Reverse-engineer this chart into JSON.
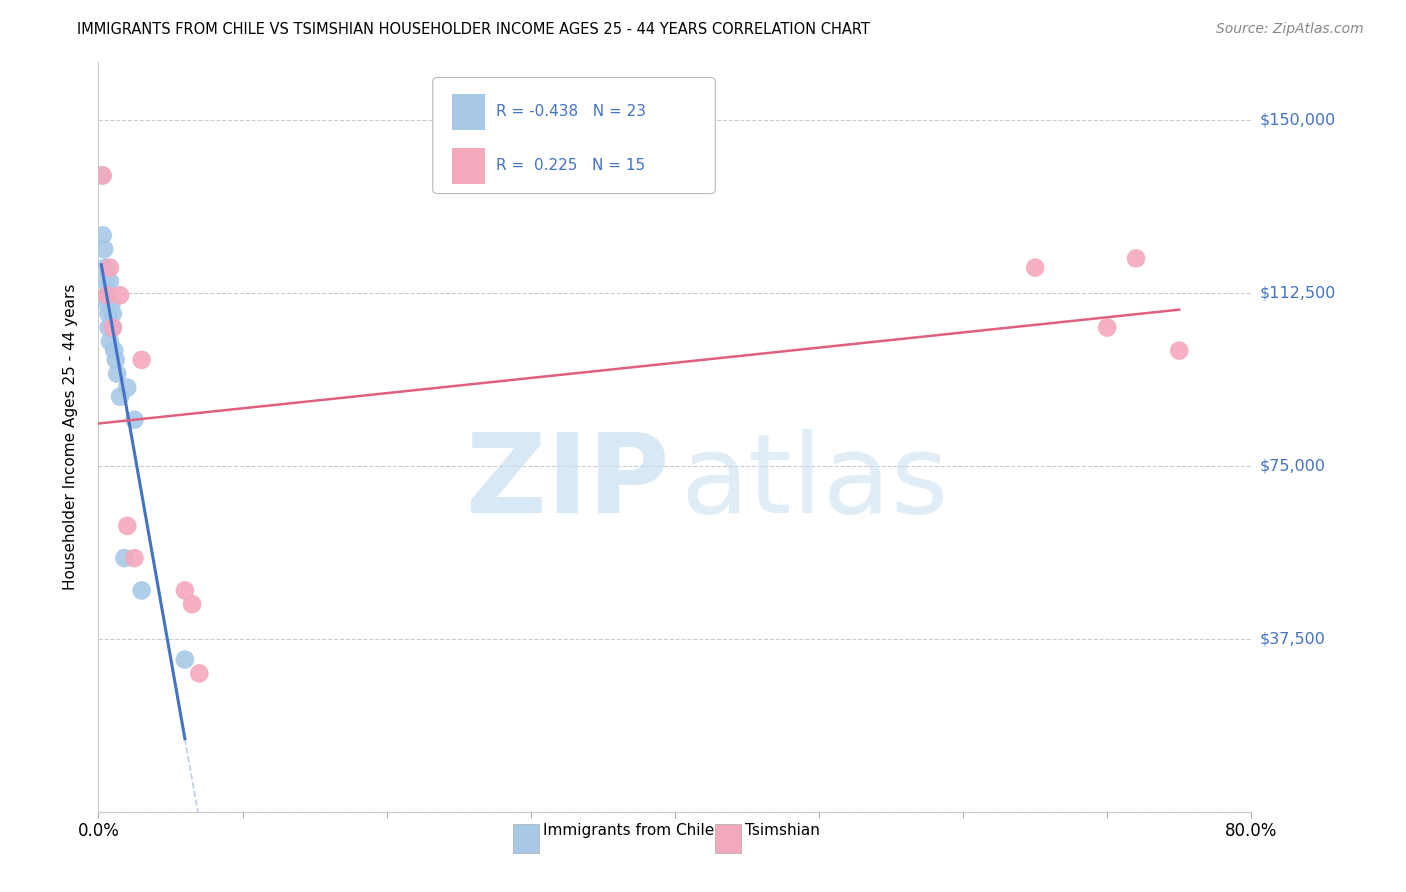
{
  "title": "IMMIGRANTS FROM CHILE VS TSIMSHIAN HOUSEHOLDER INCOME AGES 25 - 44 YEARS CORRELATION CHART",
  "source": "Source: ZipAtlas.com",
  "ylabel": "Householder Income Ages 25 - 44 years",
  "x_min": 0.0,
  "x_max": 0.8,
  "y_min": 0,
  "y_max": 162500,
  "y_tick_values": [
    0,
    37500,
    75000,
    112500,
    150000
  ],
  "y_tick_labels": [
    "",
    "$37,500",
    "$75,000",
    "$112,500",
    "$150,000"
  ],
  "chile_color": "#a8c8e8",
  "tsimshian_color": "#f4a8bc",
  "chile_line_color": "#4472c4",
  "tsimshian_line_color": "#e06080",
  "background_color": "#ffffff",
  "grid_color": "#cccccc",
  "label_color": "#4472c4",
  "chile_x": [
    0.002,
    0.003,
    0.004,
    0.005,
    0.005,
    0.006,
    0.006,
    0.007,
    0.007,
    0.008,
    0.008,
    0.009,
    0.01,
    0.01,
    0.011,
    0.012,
    0.013,
    0.015,
    0.018,
    0.02,
    0.025,
    0.03,
    0.06
  ],
  "chile_y": [
    138000,
    125000,
    122000,
    118000,
    115000,
    112000,
    110000,
    108000,
    105000,
    102000,
    115000,
    110000,
    108000,
    105000,
    100000,
    98000,
    95000,
    90000,
    55000,
    92000,
    85000,
    48000,
    33000
  ],
  "tsimshian_x": [
    0.003,
    0.006,
    0.008,
    0.01,
    0.015,
    0.02,
    0.025,
    0.03,
    0.06,
    0.065,
    0.07,
    0.65,
    0.7,
    0.72,
    0.75
  ],
  "tsimshian_y": [
    138000,
    112000,
    118000,
    105000,
    112000,
    62000,
    55000,
    98000,
    48000,
    45000,
    30000,
    118000,
    105000,
    120000,
    100000
  ]
}
